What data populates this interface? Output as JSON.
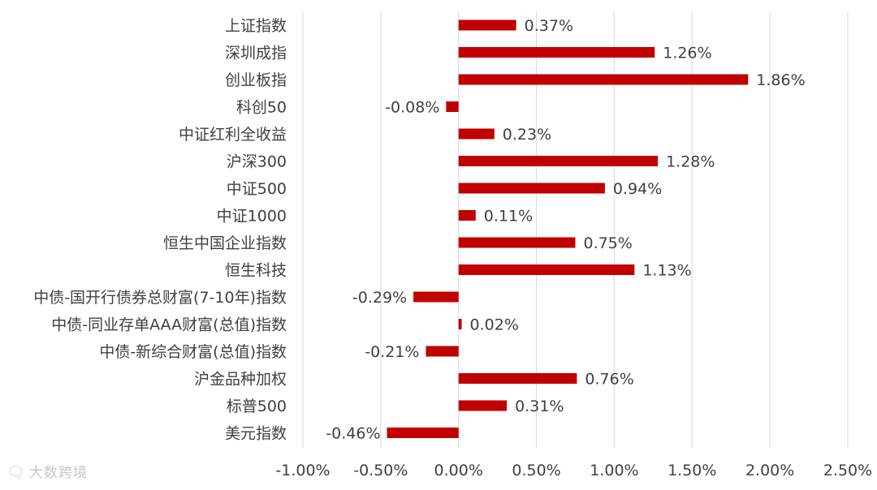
{
  "chart_data": {
    "type": "bar",
    "orientation": "horizontal",
    "categories": [
      "上证指数",
      "深圳成指",
      "创业板指",
      "科创50",
      "中证红利全收益",
      "沪深300",
      "中证500",
      "中证1000",
      "恒生中国企业指数",
      "恒生科技",
      "中债-国开行债券总财富(7-10年)指数",
      "中债-同业存单AAA财富(总值)指数",
      "中债-新综合财富(总值)指数",
      "沪金品种加权",
      "标普500",
      "美元指数"
    ],
    "values": [
      0.37,
      1.26,
      1.86,
      -0.08,
      0.23,
      1.28,
      0.94,
      0.11,
      0.75,
      1.13,
      -0.29,
      0.02,
      -0.21,
      0.76,
      0.31,
      -0.46
    ],
    "value_labels": [
      "0.37%",
      "1.26%",
      "1.86%",
      "-0.08%",
      "0.23%",
      "1.28%",
      "0.94%",
      "0.11%",
      "0.75%",
      "1.13%",
      "-0.29%",
      "0.02%",
      "-0.21%",
      "0.76%",
      "0.31%",
      "-0.46%"
    ],
    "xlim": [
      -1.0,
      2.5
    ],
    "x_ticks": [
      -1.0,
      -0.5,
      0.0,
      0.5,
      1.0,
      1.5,
      2.0,
      2.5
    ],
    "x_tick_labels": [
      "-1.00%",
      "-0.50%",
      "0.00%",
      "0.50%",
      "1.00%",
      "1.50%",
      "2.00%",
      "2.50%"
    ],
    "grid": "vertical",
    "legend": "none",
    "bar_color": "#c00000",
    "title": "",
    "xlabel": "",
    "ylabel": ""
  },
  "watermark": {
    "icon": "chat-bubble-icon",
    "text": "大数跨境"
  }
}
